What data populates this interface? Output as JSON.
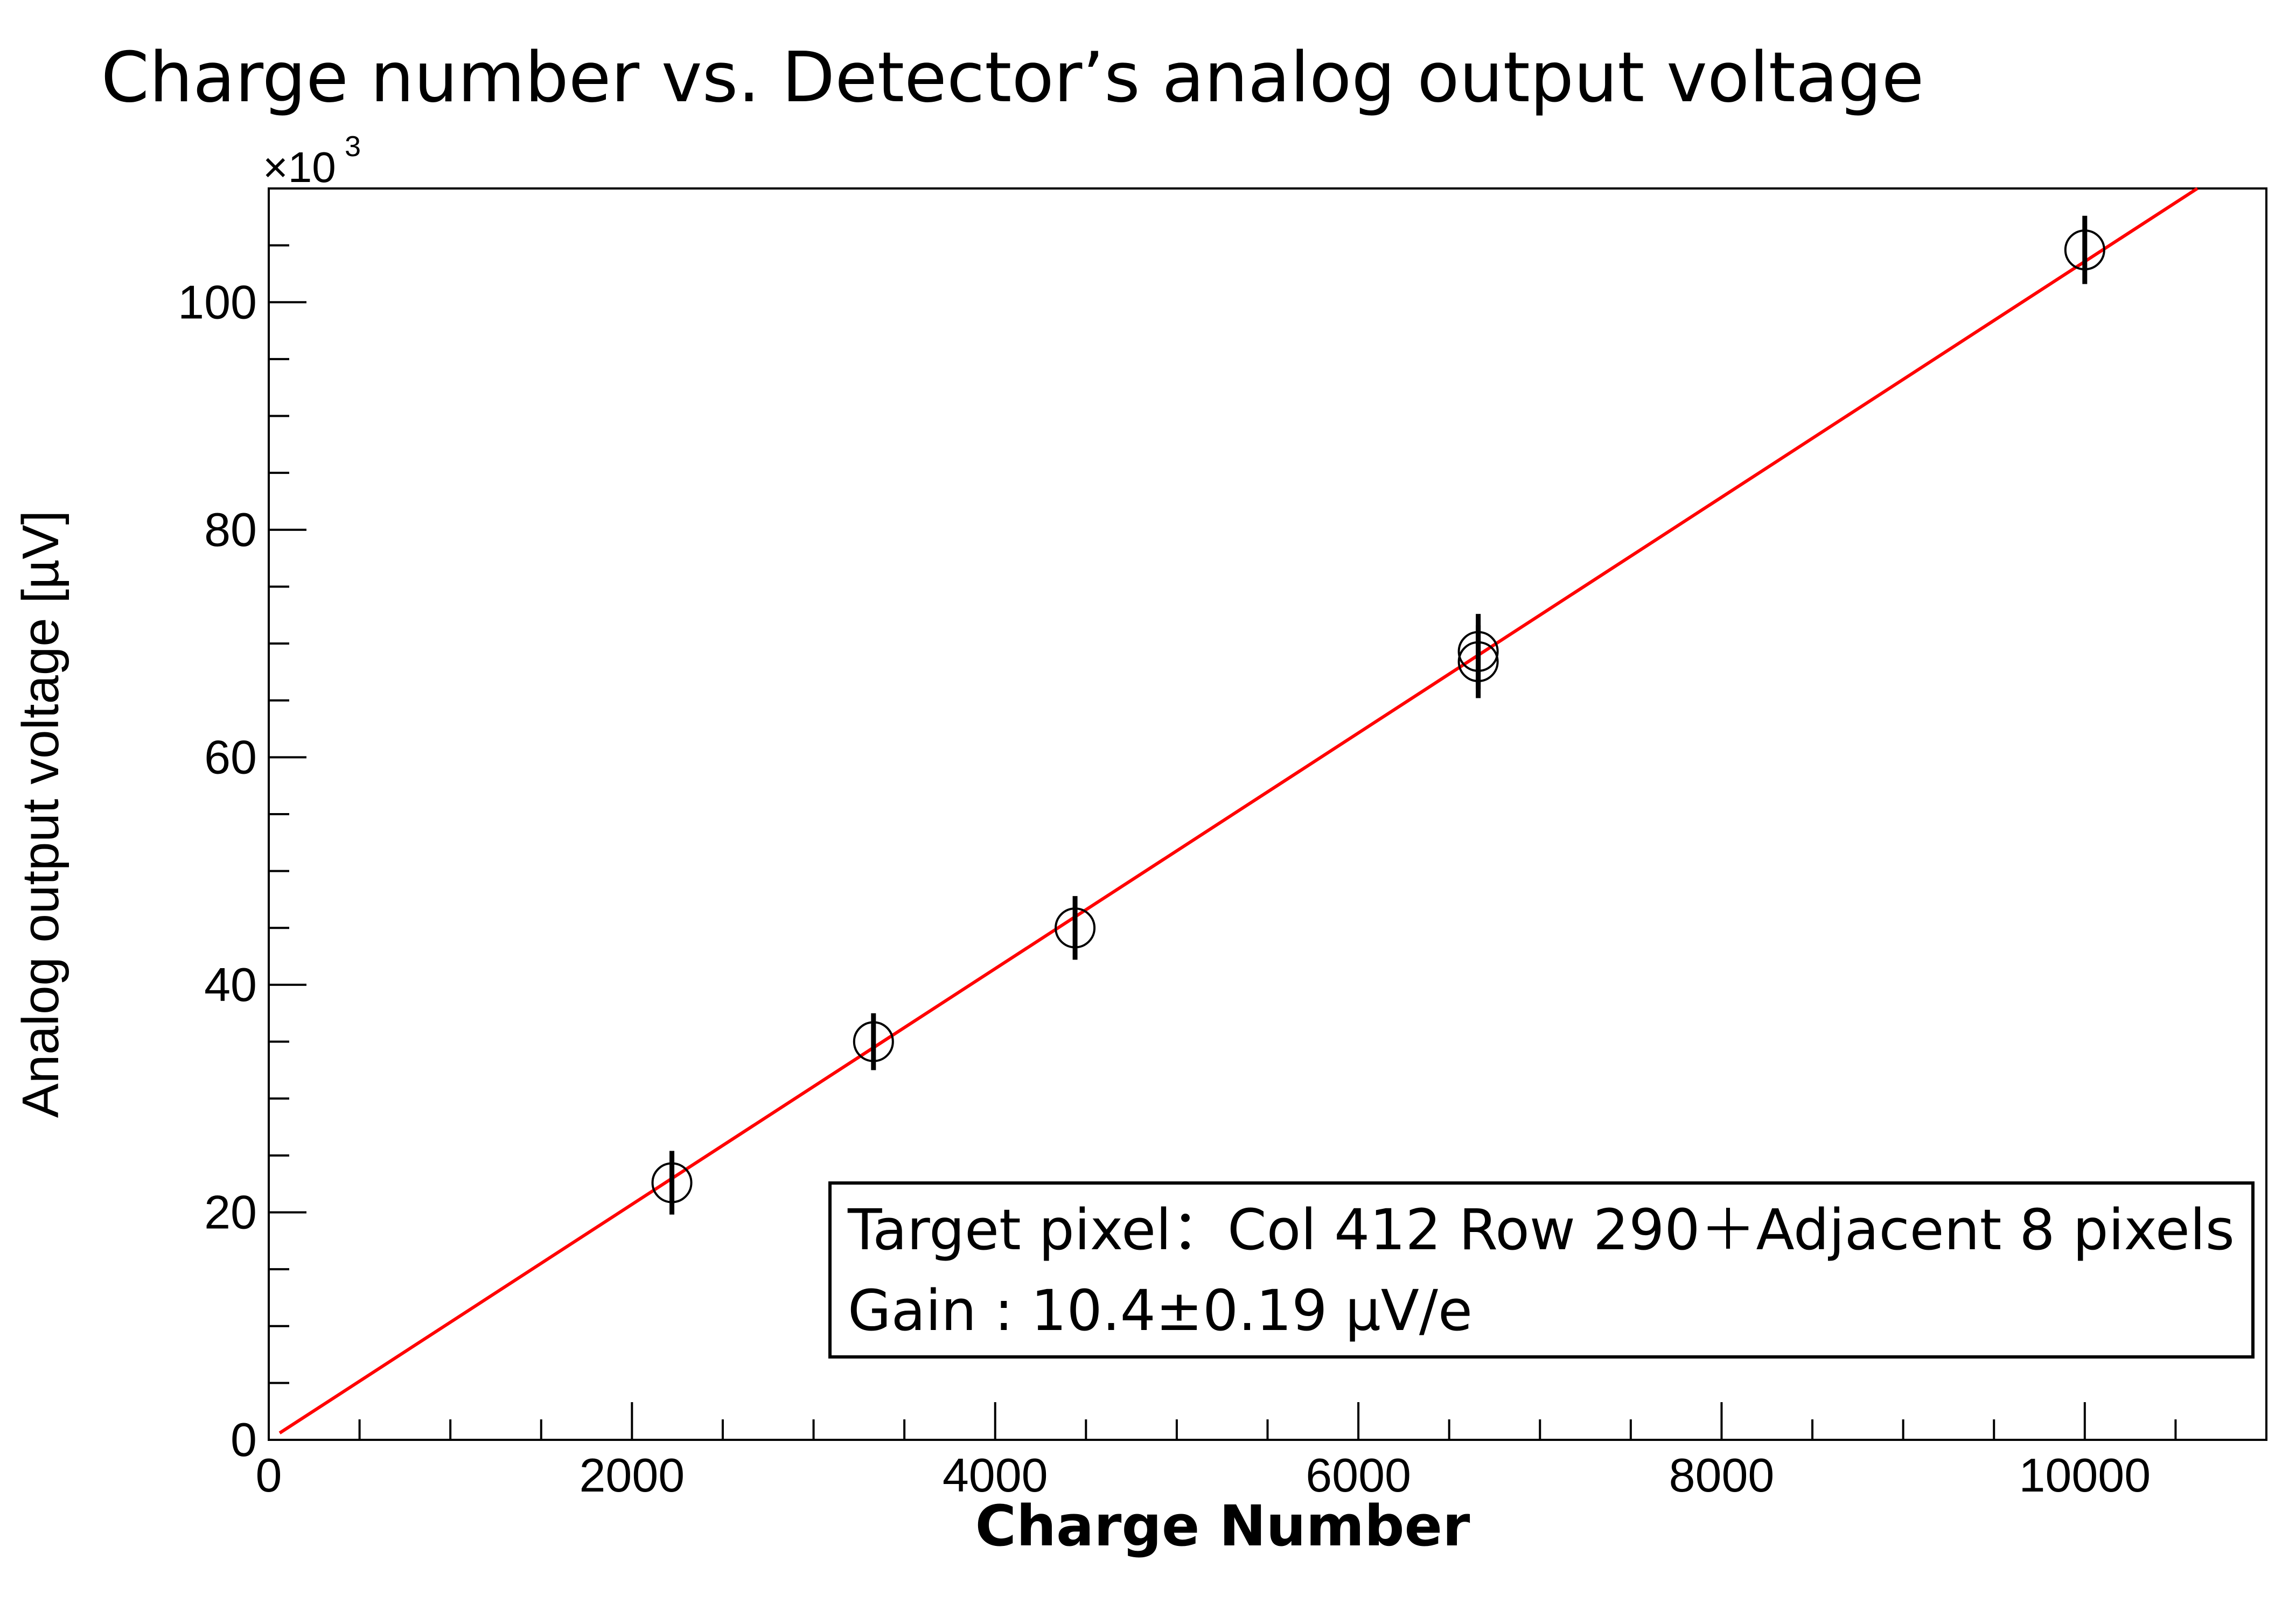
{
  "chart_data": {
    "type": "scatter",
    "title": "Charge number vs. Detector’s analog output voltage",
    "xlabel": "Charge Number",
    "ylabel": "Analog output voltage [µV]",
    "y_multiplier_label": "×10",
    "y_multiplier_exponent": "3",
    "xlim": [
      0,
      11000
    ],
    "ylim": [
      0,
      110
    ],
    "x_ticks": [
      "0",
      "2000",
      "4000",
      "6000",
      "8000",
      "10000"
    ],
    "y_ticks": [
      "0",
      "20",
      "40",
      "60",
      "80",
      "100"
    ],
    "x_tick_values": [
      0,
      2000,
      4000,
      6000,
      8000,
      10000
    ],
    "y_tick_values": [
      0,
      20,
      40,
      60,
      80,
      100
    ],
    "grid": false,
    "series": [
      {
        "marker": "open-circle",
        "color": "#000000",
        "points": [
          {
            "x": 2220,
            "y": 22.6,
            "yerr": 2.8
          },
          {
            "x": 3330,
            "y": 35.0,
            "yerr": 2.5
          },
          {
            "x": 4440,
            "y": 45.0,
            "yerr": 2.8
          },
          {
            "x": 6660,
            "y": 69.3,
            "yerr": 3.3
          },
          {
            "x": 6660,
            "y": 68.4,
            "yerr": 3.2
          },
          {
            "x": 10000,
            "y": 104.6,
            "yerr": 3.0
          }
        ]
      }
    ],
    "fit": {
      "color": "#ff0000",
      "x_range": [
        60,
        10620
      ],
      "y_range": [
        0.6,
        110
      ]
    },
    "annotations": [
      "Target pixel：Col 412 Row 290＋Adjacent 8 pixels",
      "Gain : 10.4±0.19 µV/e"
    ]
  }
}
